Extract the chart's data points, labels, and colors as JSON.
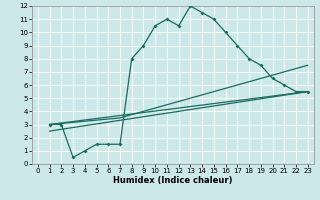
{
  "xlabel": "Humidex (Indice chaleur)",
  "bg_color": "#cce8e8",
  "grid_color": "#ffffff",
  "line_color": "#1a6b60",
  "xlim": [
    -0.5,
    23.5
  ],
  "ylim": [
    0,
    12
  ],
  "xticks": [
    0,
    1,
    2,
    3,
    4,
    5,
    6,
    7,
    8,
    9,
    10,
    11,
    12,
    13,
    14,
    15,
    16,
    17,
    18,
    19,
    20,
    21,
    22,
    23
  ],
  "yticks": [
    0,
    1,
    2,
    3,
    4,
    5,
    6,
    7,
    8,
    9,
    10,
    11,
    12
  ],
  "curve1_x": [
    1,
    2,
    3,
    4,
    5,
    6,
    7,
    8,
    9,
    10,
    11,
    12,
    13,
    14,
    15,
    16,
    17,
    18,
    19,
    20,
    21,
    22,
    23
  ],
  "curve1_y": [
    3.0,
    3.0,
    0.5,
    1.0,
    1.5,
    1.5,
    1.5,
    8.0,
    9.0,
    10.5,
    11.0,
    10.5,
    12.0,
    11.5,
    11.0,
    10.0,
    9.0,
    8.0,
    7.5,
    6.5,
    6.0,
    5.5,
    5.5
  ],
  "line1_x": [
    1,
    23
  ],
  "line1_y": [
    3.0,
    5.5
  ],
  "line2_x": [
    1,
    23
  ],
  "line2_y": [
    2.5,
    5.5
  ],
  "line3_x": [
    1,
    7,
    23
  ],
  "line3_y": [
    3.0,
    3.5,
    7.5
  ]
}
